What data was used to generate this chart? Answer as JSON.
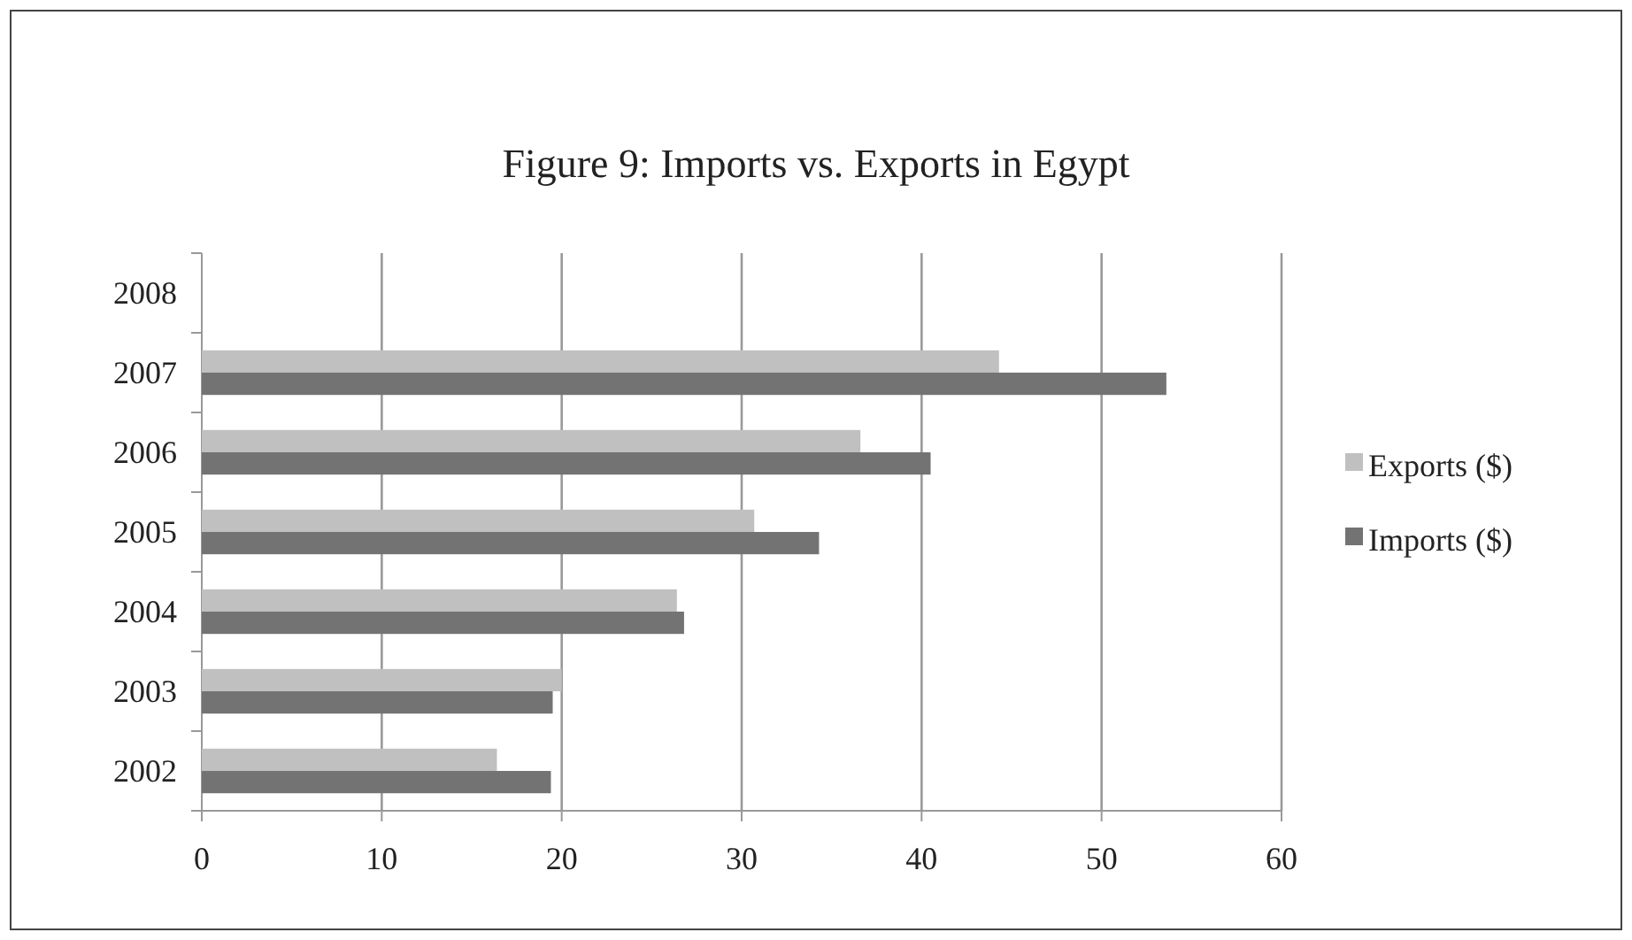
{
  "chart_data": {
    "type": "bar",
    "orientation": "horizontal",
    "title": "Figure 9: Imports vs. Exports in Egypt",
    "categories": [
      "2008",
      "2007",
      "2006",
      "2005",
      "2004",
      "2003",
      "2002"
    ],
    "series": [
      {
        "name": "Exports ($)",
        "color": "#c0c0c0",
        "values": [
          null,
          44.3,
          36.6,
          30.7,
          26.4,
          20.0,
          16.4
        ]
      },
      {
        "name": "Imports ($)",
        "color": "#737373",
        "values": [
          null,
          53.6,
          40.5,
          34.3,
          26.8,
          19.5,
          19.4
        ]
      }
    ],
    "xlim": [
      0,
      60
    ],
    "xticks": [
      0,
      10,
      20,
      30,
      40,
      50,
      60
    ],
    "grid": "x",
    "legend": "right"
  }
}
